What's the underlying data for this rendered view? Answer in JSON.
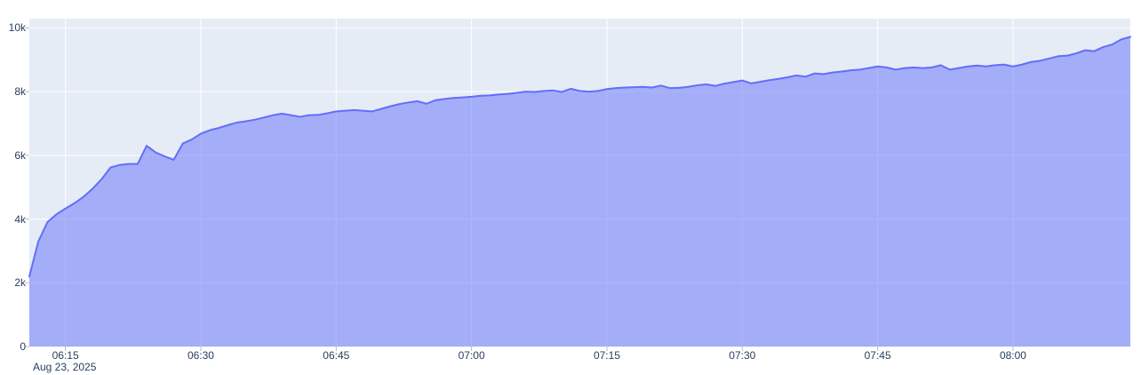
{
  "chart_data": {
    "type": "area",
    "title": "",
    "x_axis": {
      "kind": "time",
      "date_label": "Aug 23, 2025",
      "range": [
        "06:11",
        "08:13"
      ],
      "tick_labels": [
        "06:15",
        "06:30",
        "06:45",
        "07:00",
        "07:15",
        "07:30",
        "07:45",
        "08:00"
      ],
      "x_start": "06:11",
      "x_step_minutes": 1
    },
    "y_axis": {
      "range": [
        0,
        10290
      ],
      "tick_values": [
        0,
        2000,
        4000,
        6000,
        8000,
        10000
      ],
      "tick_labels": [
        "0",
        "2k",
        "4k",
        "6k",
        "8k",
        "10k"
      ]
    },
    "series": [
      {
        "values": [
          2200,
          3300,
          3900,
          4150,
          4330,
          4500,
          4700,
          4950,
          5250,
          5620,
          5700,
          5730,
          5730,
          6300,
          6090,
          5970,
          5860,
          6370,
          6500,
          6680,
          6790,
          6860,
          6950,
          7030,
          7070,
          7120,
          7190,
          7260,
          7310,
          7260,
          7210,
          7260,
          7270,
          7320,
          7380,
          7400,
          7420,
          7400,
          7380,
          7460,
          7540,
          7610,
          7660,
          7700,
          7620,
          7730,
          7770,
          7800,
          7820,
          7840,
          7870,
          7880,
          7910,
          7930,
          7960,
          8000,
          7990,
          8020,
          8040,
          7990,
          8090,
          8020,
          8000,
          8020,
          8080,
          8110,
          8130,
          8140,
          8150,
          8130,
          8190,
          8110,
          8120,
          8150,
          8200,
          8230,
          8180,
          8250,
          8300,
          8350,
          8260,
          8310,
          8360,
          8400,
          8450,
          8510,
          8470,
          8570,
          8550,
          8600,
          8630,
          8670,
          8690,
          8740,
          8790,
          8760,
          8690,
          8740,
          8760,
          8740,
          8760,
          8830,
          8690,
          8740,
          8790,
          8820,
          8790,
          8830,
          8850,
          8790,
          8850,
          8930,
          8970,
          9040,
          9110,
          9130,
          9200,
          9300,
          9270,
          9400,
          9480,
          9640,
          9720
        ]
      }
    ],
    "legend": {
      "visible": false
    },
    "grid": {
      "visible": true
    },
    "colors": {
      "line": "#636efa",
      "fill": "rgba(99,110,250,0.5)",
      "plot_bg": "#e5ecf6",
      "grid": "#ffffff",
      "tick_text": "#2a3f5f",
      "tick_mark": "#b8bcc9",
      "page_bg": "#ffffff"
    }
  }
}
